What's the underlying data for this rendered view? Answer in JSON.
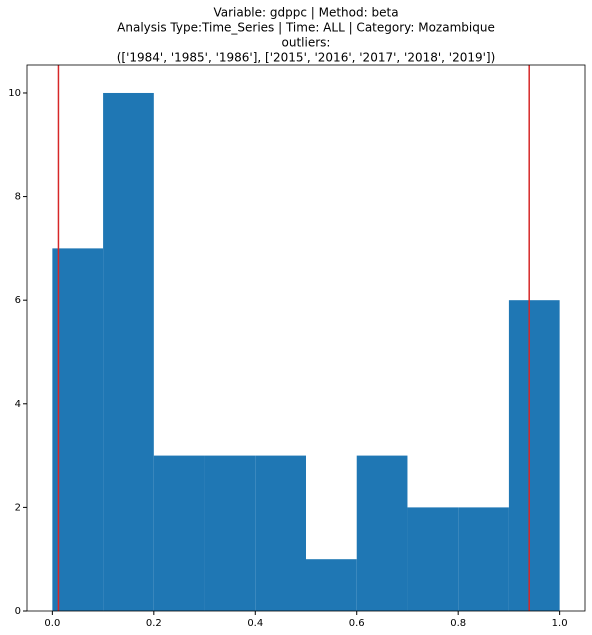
{
  "chart_data": {
    "type": "histogram",
    "title": [
      "Variable: gdppc | Method: beta",
      "Analysis Type:Time_Series | Time: ALL | Category: Mozambique",
      "outliers:",
      "(['1984', '1985', '1986'], ['2015', '2016', '2017', '2018', '2019'])"
    ],
    "bins": [
      0,
      0.1,
      0.2,
      0.3,
      0.4,
      0.5,
      0.6,
      0.7,
      0.8,
      0.9,
      1.0
    ],
    "values": [
      7,
      10,
      3,
      3,
      3,
      1,
      3,
      2,
      2,
      6
    ],
    "color": "#1f77b4",
    "vlines": [
      0.012,
      0.94
    ],
    "vline_color": "#d62728",
    "xlim": [
      -0.05,
      1.05
    ],
    "xticks": [
      {
        "value": 0,
        "label": "0.0"
      },
      0.2,
      0.4,
      0.6,
      0.8,
      {
        "value": 1,
        "label": "1.0"
      }
    ],
    "ylim": [
      0,
      10.54
    ],
    "yticks": [
      0,
      2,
      4,
      6,
      8,
      10
    ]
  }
}
